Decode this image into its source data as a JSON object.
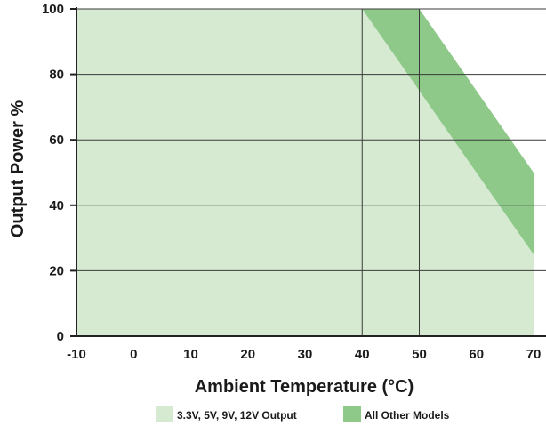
{
  "chart_data": {
    "type": "area",
    "title": "",
    "xlabel": "Ambient Temperature (°C)",
    "ylabel": "Output Power %",
    "xlim": [
      -10,
      70
    ],
    "ylim": [
      0,
      100
    ],
    "x_ticks": [
      -10,
      0,
      10,
      20,
      30,
      40,
      50,
      60,
      70
    ],
    "y_ticks": [
      0,
      20,
      40,
      60,
      80,
      100
    ],
    "grid": true,
    "legend_position": "bottom",
    "series": [
      {
        "name": "3.3V, 5V, 9V, 12V Output",
        "color": "#d6ead2",
        "points": [
          [
            -10,
            100
          ],
          [
            40,
            100
          ],
          [
            70,
            25
          ],
          [
            70,
            0
          ],
          [
            -10,
            0
          ]
        ]
      },
      {
        "name": "All Other Models",
        "color": "#8ec98a",
        "points": [
          [
            -10,
            100
          ],
          [
            50,
            100
          ],
          [
            70,
            50
          ],
          [
            70,
            0
          ],
          [
            -10,
            0
          ]
        ]
      }
    ]
  }
}
